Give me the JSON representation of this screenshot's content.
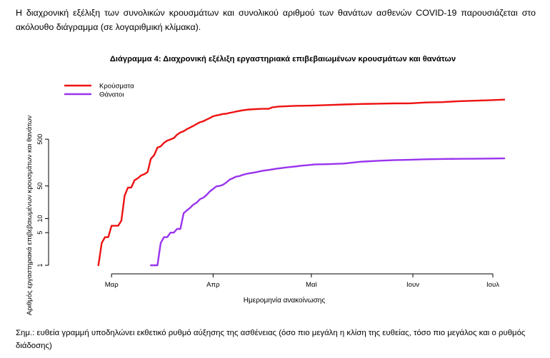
{
  "intro_text": "Η διαχρονική εξέλιξη των συνολικών κρουσμάτων και συνολικού αριθμού των θανάτων ασθενών COVID-19 παρουσιάζεται στο ακόλουθο διάγραμμα (σε λογαριθμική κλίμακα).",
  "note_text": "Σημ.: ευθεία γραμμή υποδηλώνει εκθετικό ρυθμό αύξησης της ασθένειας (όσο πιο μεγάλη η κλίση της ευθείας, τόσο πιο μεγάλος και ο ρυθμός διάδοσης)",
  "colors": {
    "cases": "#ee1111",
    "deaths": "#9933ee",
    "axis": "#000000"
  },
  "chart_data": {
    "type": "line",
    "title": "Διάγραμμα 4: Διαχρονική εξέλιξη εργαστηριακά επιβεβαιωμένων κρουσμάτων και θανάτων",
    "xlabel": "Ημερομηνία ανακοίνωσης",
    "ylabel": "Αριθμός εργαστηριακά επιβεβαιωμένων κρουσμάτων και θανάτων",
    "yscale": "log",
    "ylim": [
      1,
      8000
    ],
    "xlim": [
      0,
      134
    ],
    "x_unit": "days since 16 Feb 2020",
    "x_ticks": [
      {
        "label": "Μαρ",
        "value": 14
      },
      {
        "label": "Απρ",
        "value": 45
      },
      {
        "label": "Μαϊ",
        "value": 75
      },
      {
        "label": "Ιουν",
        "value": 106
      },
      {
        "label": "Ιουλ",
        "value": 136
      }
    ],
    "y_ticks": [
      1,
      5,
      10,
      50,
      500
    ],
    "legend": {
      "position": "top-left",
      "entries": [
        "Κρούσματα",
        "Θάνατοι"
      ]
    },
    "series": [
      {
        "name": "Κρούσματα",
        "color": "#ee1111",
        "points": [
          [
            10,
            1
          ],
          [
            11,
            3
          ],
          [
            12,
            4
          ],
          [
            13,
            4
          ],
          [
            14,
            7
          ],
          [
            15,
            7
          ],
          [
            16,
            7
          ],
          [
            17,
            9
          ],
          [
            18,
            31
          ],
          [
            19,
            46
          ],
          [
            20,
            46
          ],
          [
            21,
            66
          ],
          [
            22,
            73
          ],
          [
            23,
            84
          ],
          [
            24,
            89
          ],
          [
            25,
            99
          ],
          [
            26,
            190
          ],
          [
            27,
            228
          ],
          [
            28,
            331
          ],
          [
            29,
            352
          ],
          [
            30,
            418
          ],
          [
            31,
            464
          ],
          [
            32,
            495
          ],
          [
            33,
            530
          ],
          [
            34,
            624
          ],
          [
            35,
            695
          ],
          [
            36,
            743
          ],
          [
            37,
            821
          ],
          [
            38,
            892
          ],
          [
            39,
            966
          ],
          [
            40,
            1061
          ],
          [
            41,
            1156
          ],
          [
            42,
            1212
          ],
          [
            43,
            1314
          ],
          [
            44,
            1415
          ],
          [
            45,
            1544
          ],
          [
            46,
            1613
          ],
          [
            47,
            1673
          ],
          [
            48,
            1735
          ],
          [
            49,
            1755
          ],
          [
            50,
            1832
          ],
          [
            51,
            1884
          ],
          [
            52,
            1955
          ],
          [
            53,
            2011
          ],
          [
            54,
            2081
          ],
          [
            56,
            2170
          ],
          [
            58,
            2207
          ],
          [
            60,
            2235
          ],
          [
            62,
            2245
          ],
          [
            63,
            2401
          ],
          [
            65,
            2506
          ],
          [
            70,
            2591
          ],
          [
            75,
            2620
          ],
          [
            80,
            2691
          ],
          [
            85,
            2770
          ],
          [
            90,
            2836
          ],
          [
            95,
            2882
          ],
          [
            100,
            2918
          ],
          [
            105,
            2937
          ],
          [
            110,
            3058
          ],
          [
            115,
            3112
          ],
          [
            120,
            3256
          ],
          [
            125,
            3343
          ],
          [
            130,
            3432
          ],
          [
            134,
            3519
          ]
        ]
      },
      {
        "name": "Θάνατοι",
        "color": "#9933ee",
        "points": [
          [
            26,
            1
          ],
          [
            28,
            1
          ],
          [
            29,
            3
          ],
          [
            30,
            4
          ],
          [
            31,
            4
          ],
          [
            32,
            5
          ],
          [
            33,
            5
          ],
          [
            34,
            6
          ],
          [
            35,
            6
          ],
          [
            36,
            13
          ],
          [
            37,
            15
          ],
          [
            38,
            17
          ],
          [
            39,
            20
          ],
          [
            40,
            22
          ],
          [
            41,
            26
          ],
          [
            42,
            28
          ],
          [
            43,
            32
          ],
          [
            44,
            38
          ],
          [
            45,
            43
          ],
          [
            46,
            49
          ],
          [
            47,
            50
          ],
          [
            48,
            53
          ],
          [
            49,
            59
          ],
          [
            50,
            68
          ],
          [
            51,
            73
          ],
          [
            52,
            79
          ],
          [
            53,
            81
          ],
          [
            54,
            86
          ],
          [
            55,
            90
          ],
          [
            56,
            93
          ],
          [
            58,
            98
          ],
          [
            60,
            105
          ],
          [
            62,
            110
          ],
          [
            64,
            116
          ],
          [
            66,
            121
          ],
          [
            68,
            126
          ],
          [
            70,
            130
          ],
          [
            72,
            136
          ],
          [
            74,
            139
          ],
          [
            76,
            144
          ],
          [
            80,
            146
          ],
          [
            85,
            151
          ],
          [
            90,
            165
          ],
          [
            95,
            172
          ],
          [
            100,
            178
          ],
          [
            105,
            181
          ],
          [
            110,
            186
          ],
          [
            115,
            189
          ],
          [
            120,
            190
          ],
          [
            125,
            191
          ],
          [
            130,
            193
          ],
          [
            134,
            194
          ]
        ]
      }
    ]
  }
}
